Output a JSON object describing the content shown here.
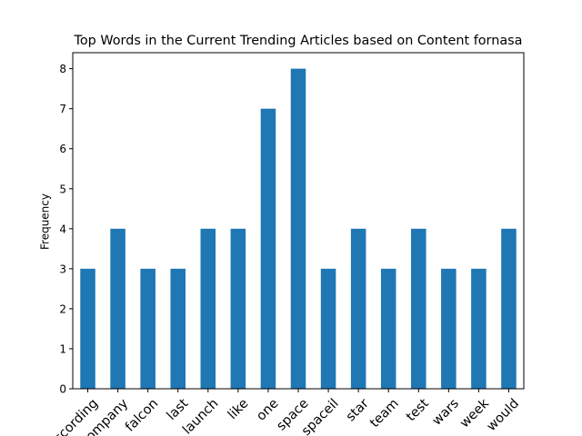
{
  "chart_data": {
    "type": "bar",
    "title": "Top Words in the Current Trending Articles based on Content fornasa",
    "xlabel": "",
    "ylabel": "Frequency",
    "categories": [
      "according",
      "company",
      "falcon",
      "last",
      "launch",
      "like",
      "one",
      "space",
      "spaceil",
      "star",
      "team",
      "test",
      "wars",
      "week",
      "would"
    ],
    "values": [
      3,
      4,
      3,
      3,
      4,
      4,
      7,
      8,
      3,
      4,
      3,
      4,
      3,
      3,
      4
    ],
    "ylim": [
      0,
      8.4
    ],
    "yticks": [
      0,
      1,
      2,
      3,
      4,
      5,
      6,
      7,
      8
    ],
    "grid": false,
    "legend": "none",
    "bar_color": "#1f77b4"
  }
}
